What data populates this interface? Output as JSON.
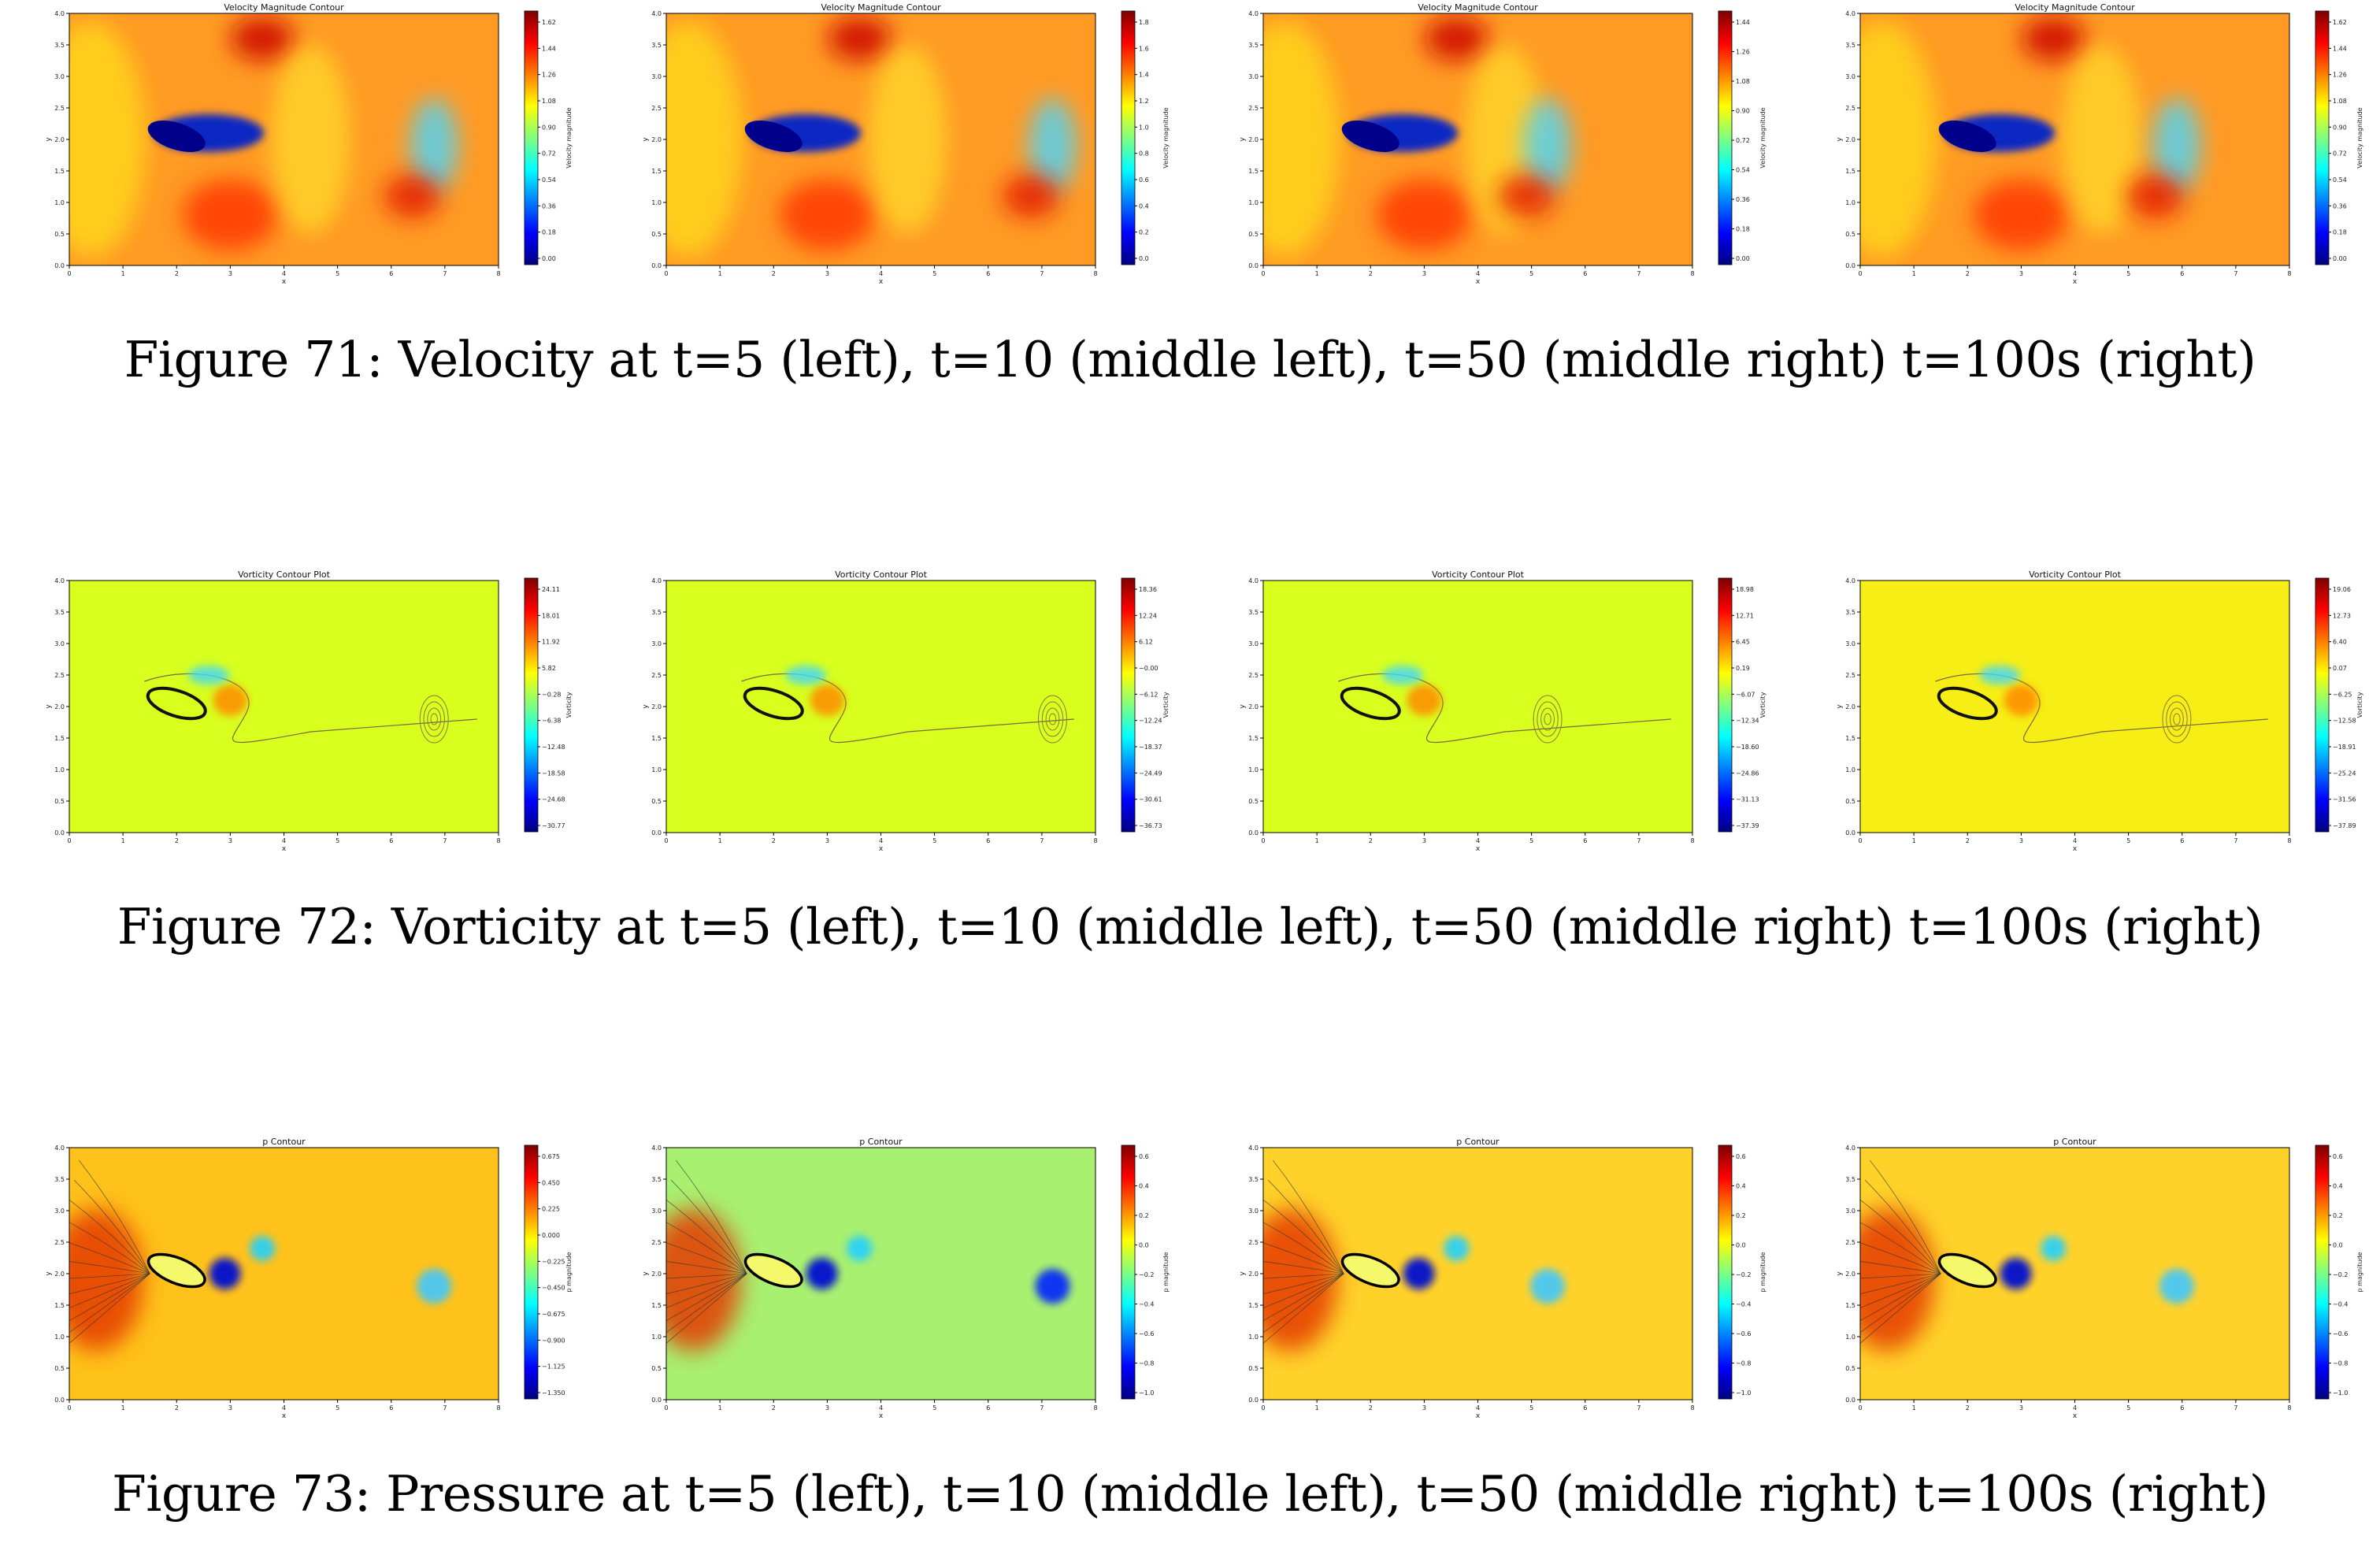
{
  "figures": [
    {
      "caption": "Figure 71: Velocity at t=5 (left), t=10 (middle left), t=50 (middle right) t=100s (right)",
      "kind": "velocity",
      "panels": [
        {
          "title": "Velocity Magnitude Contour",
          "cbar_label": "Velocity magnitude",
          "cbar_ticks": [
            "1.62",
            "1.44",
            "1.26",
            "1.08",
            "0.90",
            "0.72",
            "0.54",
            "0.36",
            "0.18",
            "0.00"
          ]
        },
        {
          "title": "Velocity Magnitude Contour",
          "cbar_label": "Velocity magnitude",
          "cbar_ticks": [
            "1.8",
            "1.6",
            "1.4",
            "1.2",
            "1.0",
            "0.8",
            "0.6",
            "0.4",
            "0.2",
            "0.0"
          ]
        },
        {
          "title": "Velocity Magnitude Contour",
          "cbar_label": "Velocity magnitude",
          "cbar_ticks": [
            "1.44",
            "1.26",
            "1.08",
            "0.90",
            "0.72",
            "0.54",
            "0.36",
            "0.18",
            "0.00"
          ]
        },
        {
          "title": "Velocity Magnitude Contour",
          "cbar_label": "Velocity magnitude",
          "cbar_ticks": [
            "1.62",
            "1.44",
            "1.26",
            "1.08",
            "0.90",
            "0.72",
            "0.54",
            "0.36",
            "0.18",
            "0.00"
          ]
        }
      ]
    },
    {
      "caption": "Figure 72: Vorticity at t=5 (left), t=10 (middle left), t=50 (middle right) t=100s (right)",
      "kind": "vorticity",
      "panels": [
        {
          "title": "Vorticity Contour Plot",
          "cbar_label": "Vorticity",
          "cbar_ticks": [
            "24.11",
            "18.01",
            "11.92",
            "5.82",
            "−0.28",
            "−6.38",
            "−12.48",
            "−18.58",
            "−24.68",
            "−30.77"
          ]
        },
        {
          "title": "Vorticity Contour Plot",
          "cbar_label": "Vorticity",
          "cbar_ticks": [
            "18.36",
            "12.24",
            "6.12",
            "−0.00",
            "−6.12",
            "−12.24",
            "−18.37",
            "−24.49",
            "−30.61",
            "−36.73"
          ]
        },
        {
          "title": "Vorticity Contour Plot",
          "cbar_label": "Vorticity",
          "cbar_ticks": [
            "18.98",
            "12.71",
            "6.45",
            "0.19",
            "−6.07",
            "−12.34",
            "−18.60",
            "−24.86",
            "−31.13",
            "−37.39"
          ]
        },
        {
          "title": "Vorticity Contour Plot",
          "cbar_label": "Vorticity",
          "cbar_ticks": [
            "19.06",
            "12.73",
            "6.40",
            "0.07",
            "−6.25",
            "−12.58",
            "−18.91",
            "−25.24",
            "−31.56",
            "−37.89"
          ]
        }
      ]
    },
    {
      "caption": "Figure 73: Pressure at t=5 (left), t=10 (middle left), t=50 (middle right) t=100s (right)",
      "kind": "pressure",
      "panels": [
        {
          "title": "p Contour",
          "cbar_label": "p magnitude",
          "cbar_ticks": [
            "0.675",
            "0.450",
            "0.225",
            "0.000",
            "−0.225",
            "−0.450",
            "−0.675",
            "−0.900",
            "−1.125",
            "−1.350"
          ]
        },
        {
          "title": "p Contour",
          "cbar_label": "p magnitude",
          "cbar_ticks": [
            "0.6",
            "0.4",
            "0.2",
            "0.0",
            "−0.2",
            "−0.4",
            "−0.6",
            "−0.8",
            "−1.0"
          ]
        },
        {
          "title": "p Contour",
          "cbar_label": "p magnitude",
          "cbar_ticks": [
            "0.6",
            "0.4",
            "0.2",
            "0.0",
            "−0.2",
            "−0.4",
            "−0.6",
            "−0.8",
            "−1.0"
          ]
        },
        {
          "title": "p Contour",
          "cbar_label": "p magnitude",
          "cbar_ticks": [
            "0.6",
            "0.4",
            "0.2",
            "0.0",
            "−0.2",
            "−0.4",
            "−0.6",
            "−0.8",
            "−1.0"
          ]
        }
      ]
    }
  ],
  "axes": {
    "xlabel": "x",
    "ylabel": "y",
    "xticks": [
      "0",
      "1",
      "2",
      "3",
      "4",
      "5",
      "6",
      "7",
      "8"
    ],
    "yticks": [
      "0.0",
      "0.5",
      "1.0",
      "1.5",
      "2.0",
      "2.5",
      "3.0",
      "3.5",
      "4.0"
    ]
  },
  "colors": {
    "colormap": [
      "#00007f",
      "#0000ff",
      "#007fff",
      "#00ffff",
      "#7fff7f",
      "#ffff00",
      "#ff7f00",
      "#ff0000",
      "#7f0000"
    ],
    "velocity_bg": "#ff9a24",
    "vorticity_bg": "#d8ff1e",
    "pressure_bg": "#ffc21a"
  }
}
